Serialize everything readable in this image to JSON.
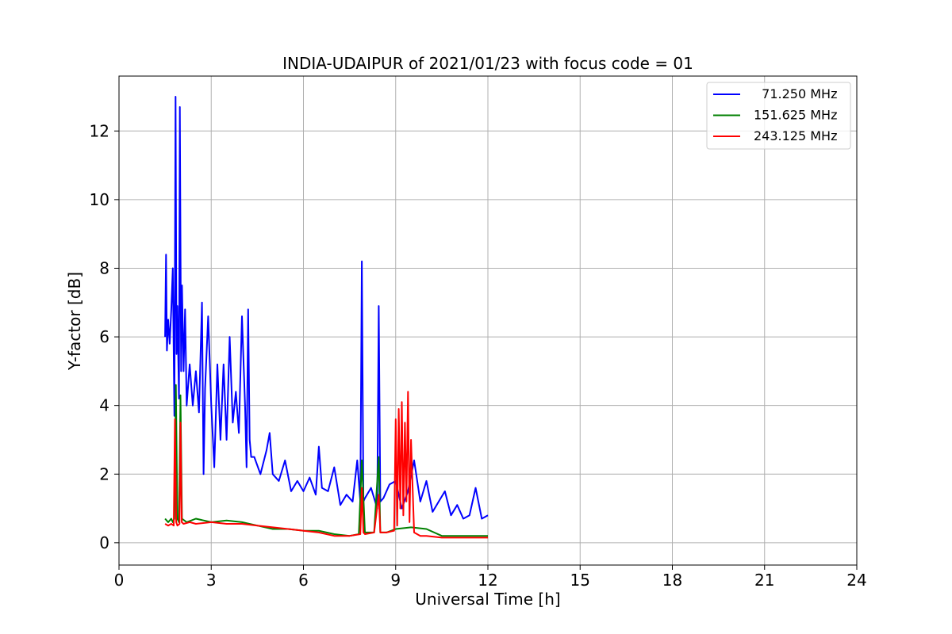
{
  "chart_data": {
    "type": "line",
    "title": "INDIA-UDAIPUR of 2021/01/23 with focus code = 01",
    "xlabel": "Universal Time [h]",
    "ylabel": "Y-factor [dB]",
    "xlim": [
      0,
      24
    ],
    "ylim": [
      -0.65,
      13.6
    ],
    "xticks": [
      0,
      3,
      6,
      9,
      12,
      15,
      18,
      21,
      24
    ],
    "yticks": [
      0,
      2,
      4,
      6,
      8,
      10,
      12
    ],
    "grid": true,
    "legend_position": "top-right",
    "series": [
      {
        "name": "71.250 MHz",
        "legend_label": "  71.250 MHz",
        "color": "#0000ff",
        "x": [
          1.5,
          1.53,
          1.56,
          1.6,
          1.65,
          1.7,
          1.75,
          1.8,
          1.84,
          1.87,
          1.9,
          1.95,
          1.98,
          2.02,
          2.05,
          2.1,
          2.15,
          2.2,
          2.3,
          2.4,
          2.5,
          2.6,
          2.7,
          2.75,
          2.8,
          2.9,
          3.0,
          3.1,
          3.2,
          3.3,
          3.4,
          3.5,
          3.6,
          3.7,
          3.8,
          3.9,
          4.0,
          4.1,
          4.15,
          4.2,
          4.25,
          4.3,
          4.4,
          4.6,
          4.8,
          4.9,
          5.0,
          5.2,
          5.4,
          5.6,
          5.8,
          6.0,
          6.2,
          6.4,
          6.5,
          6.6,
          6.8,
          7.0,
          7.2,
          7.4,
          7.6,
          7.75,
          7.85,
          7.9,
          7.95,
          8.0,
          8.2,
          8.4,
          8.45,
          8.5,
          8.6,
          8.8,
          9.0,
          9.2,
          9.4,
          9.6,
          9.8,
          10.0,
          10.2,
          10.4,
          10.6,
          10.8,
          11.0,
          11.2,
          11.4,
          11.6,
          11.8,
          12.0
        ],
        "y": [
          6.0,
          8.4,
          5.6,
          6.5,
          5.8,
          6.8,
          8.0,
          3.7,
          13.0,
          5.5,
          6.9,
          4.2,
          12.7,
          5.0,
          7.5,
          5.0,
          6.8,
          4.0,
          5.2,
          4.0,
          5.0,
          3.8,
          7.0,
          2.0,
          4.5,
          6.6,
          4.0,
          2.2,
          5.2,
          3.0,
          5.2,
          3.0,
          6.0,
          3.5,
          4.4,
          3.2,
          6.6,
          4.0,
          2.2,
          6.8,
          3.0,
          2.5,
          2.5,
          2.0,
          2.7,
          3.2,
          2.0,
          1.8,
          2.4,
          1.5,
          1.8,
          1.5,
          1.9,
          1.4,
          2.8,
          1.6,
          1.5,
          2.2,
          1.1,
          1.4,
          1.2,
          2.4,
          1.2,
          8.2,
          1.2,
          1.3,
          1.6,
          1.0,
          6.9,
          1.2,
          1.3,
          1.7,
          1.8,
          1.0,
          1.5,
          2.4,
          1.2,
          1.8,
          0.9,
          1.2,
          1.5,
          0.8,
          1.1,
          0.7,
          0.8,
          1.6,
          0.7,
          0.8
        ]
      },
      {
        "name": "151.625 MHz",
        "legend_label": "151.625 MHz",
        "color": "#008000",
        "x": [
          1.5,
          1.6,
          1.7,
          1.75,
          1.8,
          1.85,
          1.9,
          1.95,
          2.0,
          2.05,
          2.2,
          2.5,
          3.0,
          3.5,
          4.0,
          4.5,
          5.0,
          5.5,
          6.0,
          6.5,
          7.0,
          7.5,
          7.8,
          7.9,
          8.0,
          8.3,
          8.45,
          8.5,
          8.7,
          9.0,
          9.5,
          10.0,
          10.5,
          11.0,
          11.5,
          12.0
        ],
        "y": [
          0.7,
          0.6,
          0.7,
          0.6,
          0.7,
          4.6,
          0.7,
          0.6,
          4.3,
          0.7,
          0.6,
          0.7,
          0.6,
          0.65,
          0.6,
          0.5,
          0.4,
          0.4,
          0.35,
          0.35,
          0.25,
          0.2,
          0.25,
          2.4,
          0.3,
          0.3,
          2.5,
          0.3,
          0.3,
          0.4,
          0.45,
          0.4,
          0.2,
          0.2,
          0.2,
          0.2
        ]
      },
      {
        "name": "243.125 MHz",
        "legend_label": "243.125 MHz",
        "color": "#ff0000",
        "x": [
          1.5,
          1.6,
          1.7,
          1.78,
          1.82,
          1.86,
          1.9,
          1.97,
          2.0,
          2.04,
          2.1,
          2.3,
          2.5,
          3.0,
          3.5,
          4.0,
          4.5,
          5.0,
          5.5,
          6.0,
          6.5,
          7.0,
          7.5,
          7.85,
          7.9,
          7.95,
          8.0,
          8.3,
          8.45,
          8.5,
          8.7,
          8.95,
          9.0,
          9.05,
          9.1,
          9.15,
          9.2,
          9.25,
          9.3,
          9.35,
          9.4,
          9.45,
          9.5,
          9.6,
          9.8,
          10.0,
          10.5,
          11.0,
          11.5,
          12.0
        ],
        "y": [
          0.55,
          0.5,
          0.55,
          0.5,
          3.6,
          0.6,
          0.5,
          0.55,
          3.5,
          0.6,
          0.55,
          0.6,
          0.55,
          0.6,
          0.55,
          0.55,
          0.5,
          0.45,
          0.4,
          0.35,
          0.3,
          0.2,
          0.2,
          0.25,
          1.6,
          0.3,
          0.25,
          0.3,
          1.4,
          0.3,
          0.3,
          0.35,
          3.6,
          0.5,
          3.9,
          1.0,
          4.1,
          0.8,
          3.5,
          1.2,
          4.4,
          0.6,
          3.0,
          0.3,
          0.2,
          0.2,
          0.15,
          0.15,
          0.15,
          0.15
        ]
      }
    ]
  }
}
